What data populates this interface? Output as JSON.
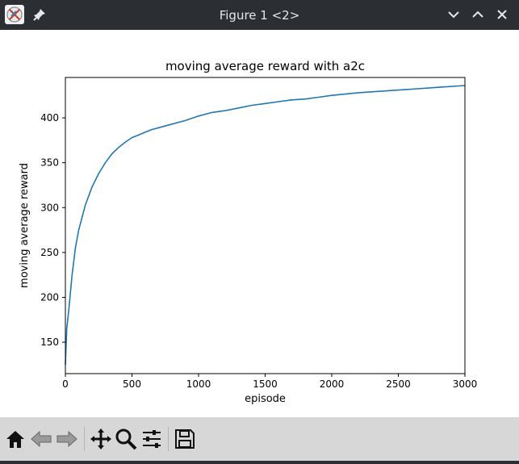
{
  "window": {
    "title": "Figure 1 <2>",
    "icons": [
      "app-icon",
      "pin-icon",
      "minimize-icon",
      "maximize-icon",
      "close-icon"
    ]
  },
  "toolbar": {
    "buttons": [
      "home-icon",
      "back-icon",
      "forward-icon",
      "pan-icon",
      "zoom-icon",
      "configure-subplots-icon",
      "save-icon"
    ]
  },
  "chart_data": {
    "type": "line",
    "title": "moving average reward with a2c",
    "xlabel": "episode",
    "ylabel": "moving average reward",
    "xlim": [
      0,
      3000
    ],
    "ylim": [
      115,
      445
    ],
    "xticks": [
      0,
      500,
      1000,
      1500,
      2000,
      2500,
      3000
    ],
    "yticks": [
      150,
      200,
      250,
      300,
      350,
      400
    ],
    "grid": false,
    "line_color": "#1f77b4",
    "series": [
      {
        "x": [
          0,
          10,
          25,
          50,
          75,
          100,
          150,
          200,
          250,
          300,
          350,
          400,
          450,
          500,
          550,
          600,
          650,
          700,
          800,
          900,
          1000,
          1100,
          1200,
          1300,
          1400,
          1500,
          1600,
          1700,
          1800,
          1900,
          2000,
          2200,
          2400,
          2600,
          2800,
          3000
        ],
        "y": [
          125,
          165,
          185,
          225,
          255,
          275,
          303,
          323,
          338,
          350,
          360,
          367,
          373,
          378,
          381,
          384,
          387,
          389,
          393,
          397,
          402,
          406,
          408,
          411,
          414,
          416,
          418,
          420,
          421,
          423,
          425,
          428,
          430,
          432,
          434,
          436
        ]
      }
    ]
  }
}
